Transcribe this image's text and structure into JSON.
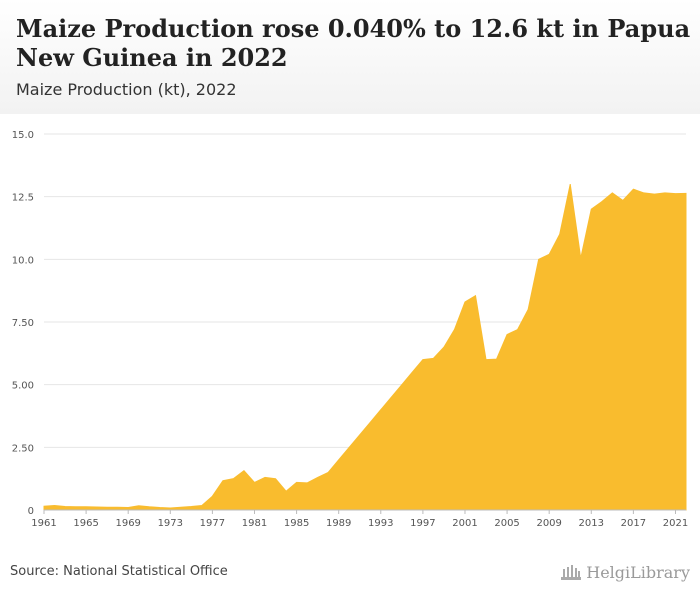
{
  "header": {
    "title": "Maize Production rose 0.040% to 12.6 kt in Papua New Guinea in 2022",
    "subtitle": "Maize Production (kt), 2022"
  },
  "footer": {
    "source": "Source: National Statistical Office",
    "logo_text": "HelgiLibrary"
  },
  "colors": {
    "area_fill": "#f9bc2e",
    "grid": "#e6e6e6",
    "axis_text": "#555555"
  },
  "chart_data": {
    "type": "area",
    "title": "Maize Production rose 0.040% to 12.6 kt in Papua New Guinea in 2022",
    "subtitle": "Maize Production (kt), 2022",
    "xlabel": "",
    "ylabel": "",
    "x": [
      1961,
      1962,
      1963,
      1964,
      1965,
      1966,
      1967,
      1968,
      1969,
      1970,
      1971,
      1972,
      1973,
      1974,
      1975,
      1976,
      1977,
      1978,
      1979,
      1980,
      1981,
      1982,
      1983,
      1984,
      1985,
      1986,
      1987,
      1988,
      1989,
      1990,
      1991,
      1992,
      1993,
      1994,
      1995,
      1996,
      1997,
      1998,
      1999,
      2000,
      2001,
      2002,
      2003,
      2004,
      2005,
      2006,
      2007,
      2008,
      2009,
      2010,
      2011,
      2012,
      2013,
      2014,
      2015,
      2016,
      2017,
      2018,
      2019,
      2020,
      2021,
      2022
    ],
    "series": [
      {
        "values": [
          0.15,
          0.18,
          0.14,
          0.13,
          0.13,
          0.12,
          0.11,
          0.11,
          0.1,
          0.17,
          0.13,
          0.1,
          0.08,
          0.11,
          0.14,
          0.18,
          0.55,
          1.17,
          1.25,
          1.57,
          1.1,
          1.3,
          1.25,
          0.75,
          1.1,
          1.08,
          1.3,
          1.5,
          2.0,
          2.5,
          3.0,
          3.5,
          4.0,
          4.5,
          5.0,
          5.5,
          6.0,
          6.05,
          6.5,
          7.2,
          8.3,
          8.55,
          6.0,
          6.02,
          7.0,
          7.2,
          8.0,
          10.0,
          10.2,
          11.0,
          13.0,
          10.05,
          12.0,
          12.3,
          12.65,
          12.35,
          12.8,
          12.65,
          12.6,
          12.65,
          12.62,
          12.63
        ]
      }
    ],
    "ylim": [
      0,
      15
    ],
    "yticks": [
      "0",
      "2.50",
      "5.00",
      "7.50",
      "10.0",
      "12.5",
      "15.0"
    ],
    "ytick_values": [
      0,
      2.5,
      5,
      7.5,
      10,
      12.5,
      15
    ],
    "xticks": [
      1961,
      1965,
      1969,
      1973,
      1977,
      1981,
      1985,
      1989,
      1993,
      1997,
      2001,
      2005,
      2009,
      2013,
      2017,
      2021
    ],
    "grid": true,
    "legend": "none"
  }
}
